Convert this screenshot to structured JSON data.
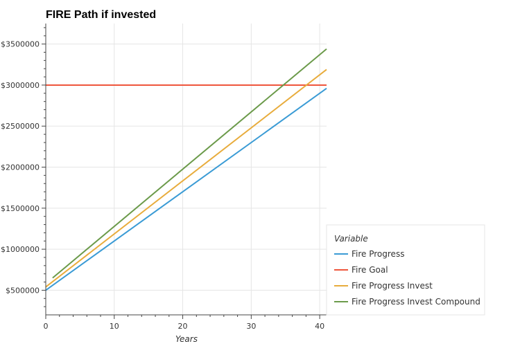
{
  "chart_data": {
    "type": "line",
    "title": "FIRE Path if invested",
    "xlabel": "Years",
    "ylabel": "",
    "xlim": [
      0,
      41
    ],
    "ylim": [
      200000,
      3750000
    ],
    "x_ticks": [
      0,
      10,
      20,
      30,
      40
    ],
    "y_ticks": [
      500000,
      1000000,
      1500000,
      2000000,
      2500000,
      3000000,
      3500000
    ],
    "y_tick_labels": [
      "$500000",
      "$1000000",
      "$1500000",
      "$2000000",
      "$2500000",
      "$3000000",
      "$3500000"
    ],
    "grid": true,
    "legend": {
      "title": "Variable",
      "position": "bottom-right, outside plot"
    },
    "series": [
      {
        "name": "Fire Progress",
        "color": "#3a9bd5",
        "x": [
          0,
          41
        ],
        "y": [
          500000,
          2960000
        ]
      },
      {
        "name": "Fire Goal",
        "color": "#ef553b",
        "x": [
          0,
          41
        ],
        "y": [
          3000000,
          3000000
        ]
      },
      {
        "name": "Fire Progress Invest",
        "color": "#e8ac3c",
        "x": [
          0,
          41
        ],
        "y": [
          540000,
          3190000
        ]
      },
      {
        "name": "Fire Progress Invest Compound",
        "color": "#6b9a4a",
        "x": [
          1,
          41
        ],
        "y": [
          650000,
          3440000
        ]
      }
    ]
  }
}
